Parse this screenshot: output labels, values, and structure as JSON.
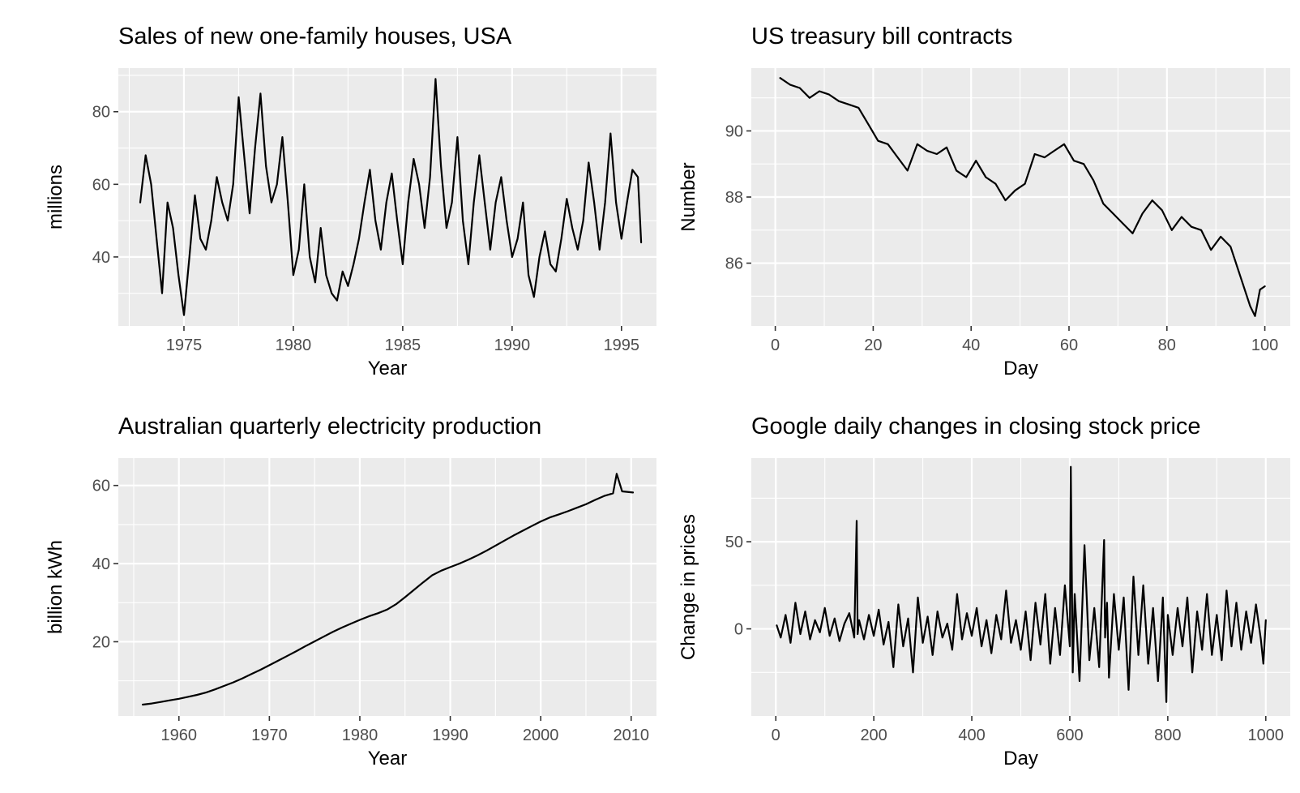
{
  "chart_data": [
    {
      "type": "line",
      "title": "Sales of new one-family houses, USA",
      "xlabel": "Year",
      "ylabel": "millions",
      "xlim": [
        1972.0,
        1996.6
      ],
      "ylim": [
        21,
        92
      ],
      "xticks": [
        1975,
        1980,
        1985,
        1990,
        1995
      ],
      "yticks": [
        40,
        60,
        80
      ],
      "grid": true,
      "legend": "none",
      "colors": {
        "line": "#000000",
        "panel": "#ebebeb",
        "grid": "#ffffff",
        "axis_text": "#4d4d4d",
        "title": "#000000"
      },
      "series": [
        {
          "x": [
            1973.0,
            1973.25,
            1973.5,
            1973.75,
            1974.0,
            1974.25,
            1974.5,
            1974.75,
            1975.0,
            1975.25,
            1975.5,
            1975.75,
            1976.0,
            1976.25,
            1976.5,
            1976.75,
            1977.0,
            1977.25,
            1977.5,
            1977.75,
            1978.0,
            1978.25,
            1978.5,
            1978.75,
            1979.0,
            1979.25,
            1979.5,
            1979.75,
            1980.0,
            1980.25,
            1980.5,
            1980.75,
            1981.0,
            1981.25,
            1981.5,
            1981.75,
            1982.0,
            1982.25,
            1982.5,
            1982.75,
            1983.0,
            1983.25,
            1983.5,
            1983.75,
            1984.0,
            1984.25,
            1984.5,
            1984.75,
            1985.0,
            1985.25,
            1985.5,
            1985.75,
            1986.0,
            1986.25,
            1986.5,
            1986.75,
            1987.0,
            1987.25,
            1987.5,
            1987.75,
            1988.0,
            1988.25,
            1988.5,
            1988.75,
            1989.0,
            1989.25,
            1989.5,
            1989.75,
            1990.0,
            1990.25,
            1990.5,
            1990.75,
            1991.0,
            1991.25,
            1991.5,
            1991.75,
            1992.0,
            1992.25,
            1992.5,
            1992.75,
            1993.0,
            1993.25,
            1993.5,
            1993.75,
            1994.0,
            1994.25,
            1994.5,
            1994.75,
            1995.0,
            1995.25,
            1995.5,
            1995.75,
            1995.9
          ],
          "y": [
            55,
            68,
            60,
            45,
            30,
            55,
            48,
            35,
            24,
            40,
            57,
            45,
            42,
            50,
            62,
            55,
            50,
            60,
            84,
            68,
            52,
            70,
            85,
            65,
            55,
            60,
            73,
            55,
            35,
            42,
            60,
            40,
            33,
            48,
            35,
            30,
            28,
            36,
            32,
            38,
            45,
            55,
            64,
            50,
            42,
            55,
            63,
            50,
            38,
            55,
            67,
            60,
            48,
            62,
            89,
            65,
            48,
            55,
            73,
            50,
            38,
            55,
            68,
            55,
            42,
            55,
            62,
            50,
            40,
            45,
            55,
            35,
            29,
            40,
            47,
            38,
            36,
            45,
            56,
            48,
            42,
            50,
            66,
            55,
            42,
            55,
            74,
            55,
            45,
            55,
            64,
            62,
            44
          ]
        }
      ]
    },
    {
      "type": "line",
      "title": "US treasury bill contracts",
      "xlabel": "Day",
      "ylabel": "Number",
      "xlim": [
        -4.9,
        105.2
      ],
      "ylim": [
        84.1,
        91.9
      ],
      "xticks": [
        0,
        20,
        40,
        60,
        80,
        100
      ],
      "yticks": [
        86,
        88,
        90
      ],
      "grid": true,
      "legend": "none",
      "colors": {
        "line": "#000000",
        "panel": "#ebebeb",
        "grid": "#ffffff",
        "axis_text": "#4d4d4d",
        "title": "#000000"
      },
      "series": [
        {
          "x": [
            1,
            3,
            5,
            7,
            9,
            11,
            13,
            15,
            17,
            19,
            21,
            23,
            25,
            27,
            29,
            31,
            33,
            35,
            37,
            39,
            41,
            43,
            45,
            47,
            49,
            51,
            53,
            55,
            57,
            59,
            61,
            63,
            65,
            67,
            69,
            71,
            73,
            75,
            77,
            79,
            81,
            83,
            85,
            87,
            89,
            91,
            93,
            95,
            97,
            98,
            99,
            100
          ],
          "y": [
            91.6,
            91.4,
            91.3,
            91.0,
            91.2,
            91.1,
            90.9,
            90.8,
            90.7,
            90.2,
            89.7,
            89.6,
            89.2,
            88.8,
            89.6,
            89.4,
            89.3,
            89.5,
            88.8,
            88.6,
            89.1,
            88.6,
            88.4,
            87.9,
            88.2,
            88.4,
            89.3,
            89.2,
            89.4,
            89.6,
            89.1,
            89.0,
            88.5,
            87.8,
            87.5,
            87.2,
            86.9,
            87.5,
            87.9,
            87.6,
            87.0,
            87.4,
            87.1,
            87.0,
            86.4,
            86.8,
            86.5,
            85.6,
            84.7,
            84.4,
            85.2,
            85.3
          ]
        }
      ]
    },
    {
      "type": "line",
      "title": "Australian quarterly electricity production",
      "xlabel": "Year",
      "ylabel": "billion kWh",
      "xlim": [
        1953.3,
        2012.8
      ],
      "ylim": [
        1,
        67
      ],
      "xticks": [
        1960,
        1970,
        1980,
        1990,
        2000,
        2010
      ],
      "yticks": [
        20,
        40,
        60
      ],
      "grid": true,
      "legend": "none",
      "colors": {
        "line": "#000000",
        "panel": "#ebebeb",
        "grid": "#ffffff",
        "axis_text": "#4d4d4d",
        "title": "#000000"
      },
      "series": [
        {
          "x": [
            1956,
            1957,
            1958,
            1959,
            1960,
            1961,
            1962,
            1963,
            1964,
            1965,
            1966,
            1967,
            1968,
            1969,
            1970,
            1971,
            1972,
            1973,
            1974,
            1975,
            1976,
            1977,
            1978,
            1979,
            1980,
            1981,
            1982,
            1983,
            1984,
            1985,
            1986,
            1987,
            1988,
            1989,
            1990,
            1991,
            1992,
            1993,
            1994,
            1995,
            1996,
            1997,
            1998,
            1999,
            2000,
            2001,
            2002,
            2003,
            2004,
            2005,
            2006,
            2007,
            2008,
            2008.4,
            2009,
            2010.2
          ],
          "y": [
            3.9,
            4.2,
            4.6,
            5.0,
            5.4,
            5.9,
            6.4,
            7.0,
            7.8,
            8.7,
            9.6,
            10.6,
            11.7,
            12.8,
            14.0,
            15.2,
            16.4,
            17.6,
            18.9,
            20.1,
            21.3,
            22.5,
            23.6,
            24.6,
            25.6,
            26.5,
            27.3,
            28.2,
            29.6,
            31.4,
            33.3,
            35.2,
            37.0,
            38.2,
            39.1,
            40.0,
            41.0,
            42.1,
            43.3,
            44.6,
            45.9,
            47.2,
            48.4,
            49.6,
            50.8,
            51.8,
            52.6,
            53.4,
            54.3,
            55.2,
            56.3,
            57.3,
            58.0,
            63.0,
            58.5,
            58.2
          ]
        }
      ]
    },
    {
      "type": "line",
      "title": "Google daily changes in closing stock price",
      "xlabel": "Day",
      "ylabel": "Change in prices",
      "xlim": [
        -50,
        1050
      ],
      "ylim": [
        -50,
        98
      ],
      "xticks": [
        0,
        200,
        400,
        600,
        800,
        1000
      ],
      "yticks": [
        0,
        50
      ],
      "grid": true,
      "legend": "none",
      "colors": {
        "line": "#000000",
        "panel": "#ebebeb",
        "grid": "#ffffff",
        "axis_text": "#4d4d4d",
        "title": "#000000"
      },
      "series": [
        {
          "x": [
            2,
            10,
            20,
            30,
            40,
            50,
            60,
            70,
            80,
            90,
            100,
            110,
            120,
            130,
            140,
            150,
            160,
            165,
            167,
            170,
            180,
            190,
            200,
            210,
            220,
            230,
            240,
            250,
            260,
            270,
            280,
            290,
            300,
            310,
            320,
            330,
            340,
            350,
            360,
            370,
            380,
            390,
            400,
            410,
            420,
            430,
            440,
            450,
            460,
            470,
            480,
            490,
            500,
            510,
            520,
            530,
            540,
            550,
            560,
            570,
            580,
            590,
            600,
            602,
            606,
            610,
            620,
            630,
            640,
            650,
            660,
            670,
            672,
            676,
            680,
            690,
            700,
            710,
            720,
            730,
            740,
            750,
            760,
            770,
            780,
            790,
            797,
            800,
            810,
            820,
            830,
            840,
            850,
            860,
            870,
            880,
            890,
            900,
            910,
            920,
            930,
            940,
            950,
            960,
            970,
            980,
            990,
            995,
            1000
          ],
          "y": [
            2,
            -5,
            8,
            -8,
            15,
            -3,
            10,
            -6,
            5,
            -2,
            12,
            -4,
            6,
            -7,
            3,
            9,
            -5,
            62,
            -3,
            5,
            -6,
            8,
            -4,
            11,
            -9,
            4,
            -22,
            14,
            -10,
            6,
            -25,
            18,
            -8,
            7,
            -15,
            10,
            -5,
            3,
            -12,
            20,
            -6,
            9,
            -4,
            12,
            -10,
            5,
            -14,
            8,
            -6,
            22,
            -8,
            5,
            -12,
            10,
            -18,
            15,
            -9,
            20,
            -20,
            12,
            -15,
            25,
            -10,
            93,
            -25,
            20,
            -30,
            48,
            -18,
            12,
            -22,
            51,
            -5,
            15,
            -28,
            20,
            -12,
            18,
            -35,
            30,
            -15,
            25,
            -20,
            12,
            -30,
            18,
            -42,
            8,
            -15,
            12,
            -10,
            18,
            -25,
            10,
            -12,
            20,
            -15,
            8,
            -18,
            22,
            -10,
            15,
            -12,
            10,
            -8,
            14,
            -6,
            -20,
            5
          ]
        }
      ]
    }
  ]
}
